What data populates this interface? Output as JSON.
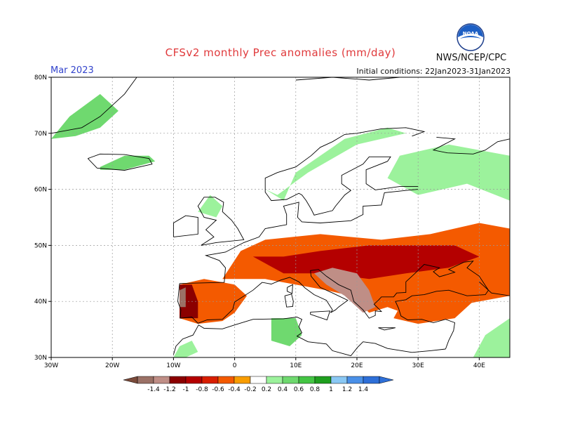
{
  "header": {
    "title": "CFSv2 monthly Prec anomalies (mm/day)",
    "month": "Mar 2023",
    "initial_conditions": "Initial conditions: 22Jan2023-31Jan2023",
    "agency": "NWS/NCEP/CPC",
    "logo_text": "NOAA"
  },
  "map": {
    "lon_range": [
      -30,
      45
    ],
    "lat_range": [
      30,
      80
    ],
    "lat_ticks": [
      {
        "value": 30,
        "label": "30N"
      },
      {
        "value": 40,
        "label": "40N"
      },
      {
        "value": 50,
        "label": "50N"
      },
      {
        "value": 60,
        "label": "60N"
      },
      {
        "value": 70,
        "label": "70N"
      },
      {
        "value": 80,
        "label": "80N"
      }
    ],
    "lon_ticks": [
      {
        "value": -30,
        "label": "30W"
      },
      {
        "value": -20,
        "label": "20W"
      },
      {
        "value": -10,
        "label": "10W"
      },
      {
        "value": 0,
        "label": "0"
      },
      {
        "value": 10,
        "label": "10E"
      },
      {
        "value": 20,
        "label": "20E"
      },
      {
        "value": 30,
        "label": "30E"
      },
      {
        "value": 40,
        "label": "40E"
      }
    ],
    "anomaly_regions": [
      {
        "name": "scandinavia-wet",
        "level": 0.3,
        "poly": [
          [
            5,
            60
          ],
          [
            8,
            58
          ],
          [
            10,
            63
          ],
          [
            14,
            66
          ],
          [
            18,
            69
          ],
          [
            25,
            71
          ],
          [
            28,
            70
          ],
          [
            20,
            68
          ],
          [
            12,
            63
          ],
          [
            7,
            59
          ]
        ]
      },
      {
        "name": "iceland-wet",
        "level": 0.5,
        "poly": [
          [
            -22,
            64
          ],
          [
            -18,
            66
          ],
          [
            -14,
            66
          ],
          [
            -13,
            65
          ],
          [
            -18,
            63.5
          ],
          [
            -22,
            63.5
          ]
        ]
      },
      {
        "name": "greenland-wet",
        "level": 0.4,
        "poly": [
          [
            -30,
            69
          ],
          [
            -27,
            73
          ],
          [
            -22,
            77
          ],
          [
            -19,
            74
          ],
          [
            -22,
            71
          ],
          [
            -26,
            69.5
          ]
        ]
      },
      {
        "name": "russia-wet",
        "level": 0.3,
        "poly": [
          [
            25,
            62
          ],
          [
            27,
            66
          ],
          [
            35,
            68
          ],
          [
            45,
            66
          ],
          [
            45,
            58
          ],
          [
            38,
            61
          ],
          [
            30,
            59
          ]
        ]
      },
      {
        "name": "uk-wet",
        "level": 0.3,
        "poly": [
          [
            -6,
            56
          ],
          [
            -4,
            59
          ],
          [
            -2,
            57
          ],
          [
            -3,
            55
          ]
        ]
      },
      {
        "name": "algeria-wet",
        "level": 0.5,
        "poly": [
          [
            6,
            33
          ],
          [
            6,
            37
          ],
          [
            10,
            37
          ],
          [
            11,
            34
          ],
          [
            9,
            32
          ]
        ]
      },
      {
        "name": "morocco-wet",
        "level": 0.3,
        "poly": [
          [
            -10,
            30
          ],
          [
            -9,
            32
          ],
          [
            -7,
            33
          ],
          [
            -6,
            31
          ],
          [
            -8,
            30
          ]
        ]
      },
      {
        "name": "caucasus-wet",
        "level": 0.3,
        "poly": [
          [
            39,
            30
          ],
          [
            41,
            34
          ],
          [
            45,
            37
          ],
          [
            45,
            30
          ]
        ]
      },
      {
        "name": "europe-dry",
        "level": -0.4,
        "poly": [
          [
            -2,
            44
          ],
          [
            1,
            49
          ],
          [
            5,
            51
          ],
          [
            14,
            52
          ],
          [
            24,
            51
          ],
          [
            32,
            52
          ],
          [
            40,
            54
          ],
          [
            45,
            53
          ],
          [
            45,
            41
          ],
          [
            40,
            40
          ],
          [
            35,
            39
          ],
          [
            30,
            37
          ],
          [
            25,
            39
          ],
          [
            22,
            38
          ],
          [
            19,
            41
          ],
          [
            15,
            42
          ],
          [
            10,
            43
          ],
          [
            5,
            44
          ]
        ]
      },
      {
        "name": "central-europe-drier",
        "level": -0.7,
        "poly": [
          [
            3,
            48
          ],
          [
            8,
            48
          ],
          [
            14,
            49
          ],
          [
            22,
            50
          ],
          [
            28,
            50
          ],
          [
            36,
            50
          ],
          [
            40,
            48
          ],
          [
            35,
            46
          ],
          [
            28,
            45
          ],
          [
            22,
            44
          ],
          [
            15,
            45
          ],
          [
            8,
            45
          ]
        ]
      },
      {
        "name": "balkans-driest",
        "level": -1.0,
        "poly": [
          [
            13,
            45
          ],
          [
            16,
            46
          ],
          [
            20,
            45
          ],
          [
            22,
            42
          ],
          [
            23,
            39
          ],
          [
            21,
            38
          ],
          [
            18,
            41
          ],
          [
            15,
            43
          ]
        ]
      },
      {
        "name": "iberia-dry",
        "level": -0.4,
        "poly": [
          [
            -9,
            43
          ],
          [
            -5,
            44
          ],
          [
            0,
            43
          ],
          [
            2,
            41
          ],
          [
            0,
            38
          ],
          [
            -2,
            36.5
          ],
          [
            -6,
            36
          ],
          [
            -9,
            37
          ]
        ]
      },
      {
        "name": "iberia-drier",
        "level": -0.8,
        "poly": [
          [
            -9,
            43
          ],
          [
            -7,
            43
          ],
          [
            -6,
            40
          ],
          [
            -6,
            37
          ],
          [
            -9,
            37
          ]
        ]
      },
      {
        "name": "iberia-driest",
        "level": -1.2,
        "poly": [
          [
            -9,
            42
          ],
          [
            -8,
            42.5
          ],
          [
            -8,
            39
          ],
          [
            -9,
            39
          ]
        ]
      },
      {
        "name": "turkey-dry",
        "level": -0.4,
        "poly": [
          [
            26,
            37
          ],
          [
            28,
            41
          ],
          [
            34,
            42
          ],
          [
            40,
            41
          ],
          [
            36,
            37
          ],
          [
            30,
            36
          ]
        ]
      }
    ]
  },
  "colorbar": {
    "labels": [
      "-1.4",
      "-1.2",
      "-1",
      "-0.8",
      "-0.6",
      "-0.4",
      "-0.2",
      "0.2",
      "0.4",
      "0.6",
      "0.8",
      "1",
      "1.2",
      "1.4"
    ],
    "colors": [
      "#7a4a3a",
      "#9b7166",
      "#bf8e86",
      "#8b0000",
      "#b40000",
      "#d81e00",
      "#f45a00",
      "#f99d00",
      "#ffffff",
      "#9cf29c",
      "#6fd96f",
      "#44c544",
      "#1f9f1f",
      "#8ac8f4",
      "#4a90e8",
      "#2e6fd8"
    ]
  },
  "chart_data": {
    "type": "heatmap",
    "title": "CFSv2 monthly Prec anomalies (mm/day)",
    "subtitle": "Mar 2023",
    "xlabel": "",
    "ylabel": "",
    "x_range": [
      -30,
      45
    ],
    "y_range": [
      30,
      80
    ],
    "colorbar_levels": [
      -1.4,
      -1.2,
      -1,
      -0.8,
      -0.6,
      -0.4,
      -0.2,
      0.2,
      0.4,
      0.6,
      0.8,
      1,
      1.2,
      1.4
    ]
  }
}
